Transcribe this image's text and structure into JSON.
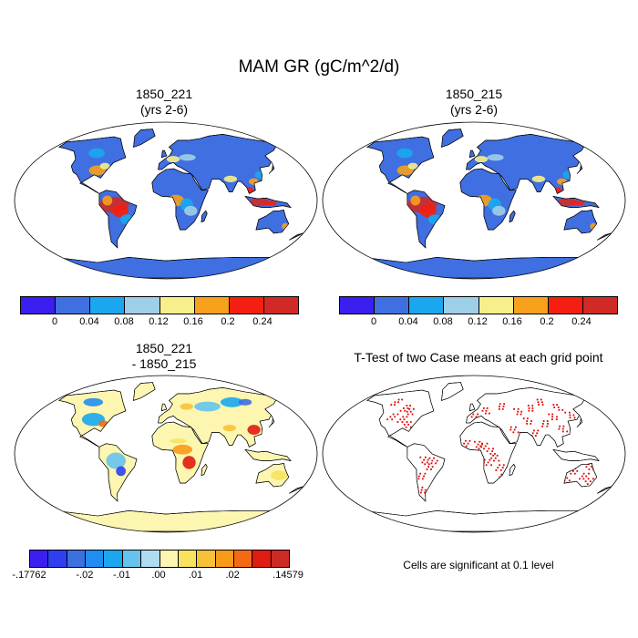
{
  "title": "MAM GR (gC/m^2/d)",
  "panels": {
    "top_left": {
      "title_line1": "1850_221",
      "title_line2": "(yrs 2-6)"
    },
    "top_right": {
      "title_line1": "1850_215",
      "title_line2": "(yrs 2-6)"
    },
    "bottom_left": {
      "title_line1": "1850_221",
      "title_line2": "- 1850_215"
    },
    "bottom_right": {
      "title_line1": "T-Test of two Case means at each grid point",
      "footnote": "Cells are significant at 0.1 level"
    }
  },
  "colorbar_main": {
    "colors": [
      "#3b1ef0",
      "#3f6fe0",
      "#1aa7ef",
      "#9ecfe8",
      "#f7ef8b",
      "#f7a11c",
      "#f41f10",
      "#d12a26"
    ],
    "labels": [
      "0",
      "0.04",
      "0.08",
      "0.12",
      "0.16",
      "0.2",
      "0.24"
    ]
  },
  "colorbar_diff": {
    "colors": [
      "#3b1ef0",
      "#2d3ff0",
      "#3c6fe0",
      "#1f8ef0",
      "#1aa7ef",
      "#66c3ee",
      "#aedcf0",
      "#fdf6b0",
      "#f7e360",
      "#f7c23a",
      "#f79b19",
      "#f46a12",
      "#e01b0f",
      "#cc2a25"
    ],
    "labels": [
      ".-17762",
      "-.02",
      "-.01",
      ".00",
      ".01",
      ".02",
      ".14579"
    ]
  },
  "colors": {
    "ocean": "#ffffff",
    "land_base": "#3f6fe0",
    "antarctica": "#3f6fe0",
    "diff_land": "#fdf6b0",
    "significant": "#e00000",
    "coast": "#000000"
  }
}
